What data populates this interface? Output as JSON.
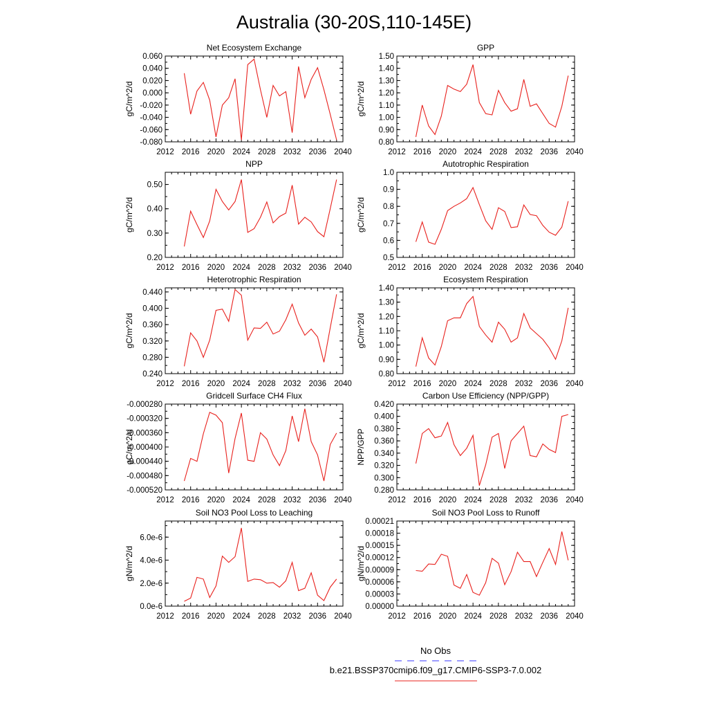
{
  "title": "Australia (30-20S,110-145E)",
  "legend": {
    "obs_label": "No Obs",
    "obs_color": "#3a3aff",
    "case_label": "b.e21.BSSP370cmip6.f09_g17.CMIP6-SSP3-7.0.002",
    "case_color": "#e8201c"
  },
  "x_ticks": [
    "2012",
    "2016",
    "2020",
    "2024",
    "2028",
    "2032",
    "2036",
    "2040"
  ],
  "chart_data": [
    {
      "type": "line",
      "title": "Net Ecosystem Exchange",
      "ylabel": "gC/m^2/d",
      "xlim": [
        2012,
        2040
      ],
      "ylim": [
        -0.08,
        0.06
      ],
      "yticks": [
        "-0.080",
        "-0.060",
        "-0.040",
        "-0.020",
        "0.000",
        "0.020",
        "0.040",
        "0.060"
      ],
      "x": [
        2015,
        2016,
        2017,
        2018,
        2019,
        2020,
        2021,
        2022,
        2023,
        2024,
        2025,
        2026,
        2027,
        2028,
        2029,
        2030,
        2031,
        2032,
        2033,
        2034,
        2035,
        2036,
        2037,
        2038,
        2039
      ],
      "values": [
        0.032,
        -0.035,
        0.003,
        0.017,
        -0.012,
        -0.072,
        -0.02,
        -0.008,
        0.023,
        -0.077,
        0.046,
        0.055,
        0.005,
        -0.04,
        0.012,
        -0.005,
        0.002,
        -0.065,
        0.043,
        -0.008,
        0.022,
        0.041,
        0.005,
        -0.035,
        -0.077
      ],
      "color": "#e8201c"
    },
    {
      "type": "line",
      "title": "GPP",
      "ylabel": "gC/m^2/d",
      "xlim": [
        2012,
        2040
      ],
      "ylim": [
        0.8,
        1.5
      ],
      "yticks": [
        "0.80",
        "0.90",
        "1.00",
        "1.10",
        "1.20",
        "1.30",
        "1.40",
        "1.50"
      ],
      "x": [
        2015,
        2016,
        2017,
        2018,
        2019,
        2020,
        2021,
        2022,
        2023,
        2024,
        2025,
        2026,
        2027,
        2028,
        2029,
        2030,
        2031,
        2032,
        2033,
        2034,
        2035,
        2036,
        2037,
        2038,
        2039
      ],
      "values": [
        0.84,
        1.1,
        0.93,
        0.86,
        1.01,
        1.26,
        1.23,
        1.21,
        1.27,
        1.43,
        1.12,
        1.03,
        1.02,
        1.22,
        1.12,
        1.05,
        1.07,
        1.31,
        1.09,
        1.11,
        1.03,
        0.95,
        0.92,
        1.09,
        1.34
      ],
      "color": "#e8201c"
    },
    {
      "type": "line",
      "title": "NPP",
      "ylabel": "gC/m^2/d",
      "xlim": [
        2012,
        2040
      ],
      "ylim": [
        0.2,
        0.55
      ],
      "yticks": [
        "0.20",
        "0.30",
        "0.40",
        "0.50"
      ],
      "ytick_values": [
        0.2,
        0.3,
        0.4,
        0.5
      ],
      "x": [
        2015,
        2016,
        2017,
        2018,
        2019,
        2020,
        2021,
        2022,
        2023,
        2024,
        2025,
        2026,
        2027,
        2028,
        2029,
        2030,
        2031,
        2032,
        2033,
        2034,
        2035,
        2036,
        2037,
        2038,
        2039
      ],
      "values": [
        0.245,
        0.39,
        0.335,
        0.282,
        0.35,
        0.48,
        0.43,
        0.395,
        0.43,
        0.52,
        0.303,
        0.318,
        0.365,
        0.428,
        0.342,
        0.368,
        0.382,
        0.497,
        0.337,
        0.365,
        0.346,
        0.306,
        0.285,
        0.4,
        0.52
      ],
      "color": "#e8201c"
    },
    {
      "type": "line",
      "title": "Autotrophic Respiration",
      "ylabel": "gC/m^2/d",
      "xlim": [
        2012,
        2040
      ],
      "ylim": [
        0.5,
        1.0
      ],
      "yticks": [
        "0.5",
        "0.6",
        "0.7",
        "0.8",
        "0.9",
        "1.0"
      ],
      "x": [
        2015,
        2016,
        2017,
        2018,
        2019,
        2020,
        2021,
        2022,
        2023,
        2024,
        2025,
        2026,
        2027,
        2028,
        2029,
        2030,
        2031,
        2032,
        2033,
        2034,
        2035,
        2036,
        2037,
        2038,
        2039
      ],
      "values": [
        0.592,
        0.708,
        0.59,
        0.577,
        0.665,
        0.775,
        0.8,
        0.82,
        0.845,
        0.91,
        0.81,
        0.715,
        0.665,
        0.792,
        0.77,
        0.675,
        0.68,
        0.808,
        0.752,
        0.745,
        0.688,
        0.648,
        0.63,
        0.678,
        0.83
      ],
      "color": "#e8201c"
    },
    {
      "type": "line",
      "title": "Heterotrophic Respiration",
      "ylabel": "gC/m^2/d",
      "xlim": [
        2012,
        2040
      ],
      "ylim": [
        0.24,
        0.45
      ],
      "yticks": [
        "0.240",
        "0.280",
        "0.320",
        "0.360",
        "0.400",
        "0.440"
      ],
      "ytick_values": [
        0.24,
        0.28,
        0.32,
        0.36,
        0.4,
        0.44
      ],
      "x": [
        2015,
        2016,
        2017,
        2018,
        2019,
        2020,
        2021,
        2022,
        2023,
        2024,
        2025,
        2026,
        2027,
        2028,
        2029,
        2030,
        2031,
        2032,
        2033,
        2034,
        2035,
        2036,
        2037,
        2038,
        2039
      ],
      "values": [
        0.258,
        0.34,
        0.32,
        0.28,
        0.322,
        0.395,
        0.398,
        0.368,
        0.446,
        0.432,
        0.322,
        0.352,
        0.351,
        0.366,
        0.337,
        0.344,
        0.372,
        0.41,
        0.364,
        0.334,
        0.349,
        0.33,
        0.268,
        0.352,
        0.434
      ],
      "color": "#e8201c"
    },
    {
      "type": "line",
      "title": "Ecosystem Respiration",
      "ylabel": "gC/m^2/d",
      "xlim": [
        2012,
        2040
      ],
      "ylim": [
        0.8,
        1.4
      ],
      "yticks": [
        "0.80",
        "0.90",
        "1.00",
        "1.10",
        "1.20",
        "1.30",
        "1.40"
      ],
      "x": [
        2015,
        2016,
        2017,
        2018,
        2019,
        2020,
        2021,
        2022,
        2023,
        2024,
        2025,
        2026,
        2027,
        2028,
        2029,
        2030,
        2031,
        2032,
        2033,
        2034,
        2035,
        2036,
        2037,
        2038,
        2039
      ],
      "values": [
        0.85,
        1.05,
        0.91,
        0.86,
        0.99,
        1.17,
        1.19,
        1.19,
        1.29,
        1.34,
        1.13,
        1.07,
        1.02,
        1.16,
        1.11,
        1.02,
        1.05,
        1.22,
        1.12,
        1.08,
        1.04,
        0.98,
        0.9,
        1.03,
        1.26
      ],
      "color": "#e8201c"
    },
    {
      "type": "line",
      "title": "Gridcell Surface CH4 Flux",
      "ylabel": "gC/m^2/d",
      "xlim": [
        2012,
        2040
      ],
      "ylim": [
        -0.00052,
        -0.00028
      ],
      "yticks": [
        "-0.000520",
        "-0.000480",
        "-0.000440",
        "-0.000400",
        "-0.000360",
        "-0.000320",
        "-0.000280"
      ],
      "x": [
        2015,
        2016,
        2017,
        2018,
        2019,
        2020,
        2021,
        2022,
        2023,
        2024,
        2025,
        2026,
        2027,
        2028,
        2029,
        2030,
        2031,
        2032,
        2033,
        2034,
        2035,
        2036,
        2037,
        2038,
        2039
      ],
      "values": [
        -0.000495,
        -0.000432,
        -0.00044,
        -0.000363,
        -0.000303,
        -0.000311,
        -0.000332,
        -0.000473,
        -0.000376,
        -0.000305,
        -0.000437,
        -0.00044,
        -0.00036,
        -0.000378,
        -0.000422,
        -0.000452,
        -0.00041,
        -0.000313,
        -0.000385,
        -0.000293,
        -0.000385,
        -0.000422,
        -0.000495,
        -0.000393,
        -0.000361
      ],
      "color": "#e8201c"
    },
    {
      "type": "line",
      "title": "Carbon Use Efficiency (NPP/GPP)",
      "ylabel": "NPP/GPP",
      "xlim": [
        2012,
        2040
      ],
      "ylim": [
        0.28,
        0.42
      ],
      "yticks": [
        "0.280",
        "0.300",
        "0.320",
        "0.340",
        "0.360",
        "0.380",
        "0.400",
        "0.420"
      ],
      "x": [
        2015,
        2016,
        2017,
        2018,
        2019,
        2020,
        2021,
        2022,
        2023,
        2024,
        2025,
        2026,
        2027,
        2028,
        2029,
        2030,
        2031,
        2032,
        2033,
        2034,
        2035,
        2036,
        2037,
        2038,
        2039
      ],
      "values": [
        0.323,
        0.372,
        0.38,
        0.365,
        0.368,
        0.39,
        0.354,
        0.336,
        0.348,
        0.369,
        0.287,
        0.321,
        0.366,
        0.372,
        0.315,
        0.36,
        0.372,
        0.384,
        0.336,
        0.334,
        0.355,
        0.346,
        0.341,
        0.4,
        0.403
      ],
      "color": "#e8201c"
    },
    {
      "type": "line",
      "title": "Soil NO3 Pool Loss to Leaching",
      "ylabel": "gN/m^2/d",
      "xlim": [
        2012,
        2040
      ],
      "ylim": [
        0.0,
        7.4e-06
      ],
      "yticks": [
        "0.0e-6",
        "2.0e-6",
        "4.0e-6",
        "6.0e-6"
      ],
      "ytick_values": [
        0.0,
        2e-06,
        4e-06,
        6e-06
      ],
      "x": [
        2015,
        2016,
        2017,
        2018,
        2019,
        2020,
        2021,
        2022,
        2023,
        2024,
        2025,
        2026,
        2027,
        2028,
        2029,
        2030,
        2031,
        2032,
        2033,
        2034,
        2035,
        2036,
        2037,
        2038,
        2039
      ],
      "values": [
        4.2e-07,
        7e-07,
        2.5e-06,
        2.35e-06,
        7.5e-07,
        1.75e-06,
        4.35e-06,
        3.8e-06,
        4.3e-06,
        6.8e-06,
        2.15e-06,
        2.35e-06,
        2.3e-06,
        2e-06,
        2.05e-06,
        1.65e-06,
        2.2e-06,
        3.8e-06,
        1.35e-06,
        1.55e-06,
        2.9e-06,
        9.5e-07,
        4.8e-07,
        1.65e-06,
        2.35e-06
      ],
      "color": "#e8201c"
    },
    {
      "type": "line",
      "title": "Soil NO3 Pool Loss to Runoff",
      "ylabel": "gN/m^2/d",
      "xlim": [
        2012,
        2040
      ],
      "ylim": [
        0.0,
        0.00021
      ],
      "yticks": [
        "0.00000",
        "0.00003",
        "0.00006",
        "0.00009",
        "0.00012",
        "0.00015",
        "0.00018",
        "0.00021"
      ],
      "x": [
        2015,
        2016,
        2017,
        2018,
        2019,
        2020,
        2021,
        2022,
        2023,
        2024,
        2025,
        2026,
        2027,
        2028,
        2029,
        2030,
        2031,
        2032,
        2033,
        2034,
        2035,
        2036,
        2037,
        2038,
        2039
      ],
      "values": [
        8.8e-05,
        8.6e-05,
        0.000104,
        0.000103,
        0.000128,
        0.000123,
        5.2e-05,
        4.4e-05,
        7.8e-05,
        3.4e-05,
        2.7e-05,
        5.8e-05,
        0.000118,
        0.000106,
        5.3e-05,
        8.5e-05,
        0.000133,
        0.00011,
        0.00011,
        7.3e-05,
        0.000108,
        0.000142,
        0.000103,
        0.000184,
        0.000113
      ],
      "color": "#e8201c"
    }
  ]
}
